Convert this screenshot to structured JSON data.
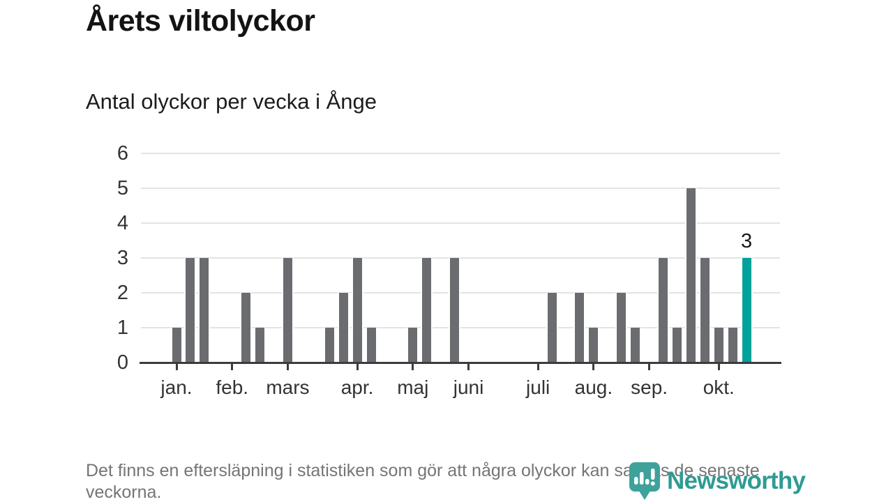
{
  "header": {
    "title": "Årets viltolyckor",
    "subtitle": "Antal olyckor per vecka i Ånge"
  },
  "chart_data": {
    "type": "bar",
    "title": "Årets viltolyckor",
    "subtitle": "Antal olyckor per vecka i Ånge",
    "xlabel": "",
    "ylabel": "",
    "x_unit": "vecka",
    "weeks_start": 1,
    "weeks_end": 42,
    "values": [
      1,
      3,
      3,
      0,
      0,
      2,
      1,
      0,
      3,
      0,
      0,
      1,
      2,
      3,
      1,
      0,
      0,
      1,
      3,
      0,
      3,
      0,
      0,
      0,
      0,
      0,
      0,
      2,
      0,
      2,
      1,
      0,
      2,
      1,
      0,
      3,
      1,
      5,
      3,
      1,
      1,
      3
    ],
    "highlight": {
      "week": 42,
      "value": 3,
      "label": "3"
    },
    "month_ticks": [
      {
        "label": "jan.",
        "week": 1
      },
      {
        "label": "feb.",
        "week": 5
      },
      {
        "label": "mars",
        "week": 9
      },
      {
        "label": "apr.",
        "week": 14
      },
      {
        "label": "maj",
        "week": 18
      },
      {
        "label": "juni",
        "week": 22
      },
      {
        "label": "juli",
        "week": 27
      },
      {
        "label": "aug.",
        "week": 31
      },
      {
        "label": "sep.",
        "week": 35
      },
      {
        "label": "okt.",
        "week": 40
      }
    ],
    "ylim": [
      0,
      6
    ],
    "yticks": [
      0,
      1,
      2,
      3,
      4,
      5,
      6
    ],
    "grid": true,
    "legend": "none",
    "bar_color": "#6b6c6f",
    "highlight_color": "#00a29a",
    "grid_color": "#e3e3e3",
    "axis_color": "#3c3c3c",
    "axis_label_color": "#333333",
    "value_label_color": "#1a1a1a"
  },
  "footer": {
    "note": "Det finns en eftersläpning i statistiken som gör att några olyckor kan saknas de senaste veckorna.",
    "brand": "Newsworthy",
    "brand_color": "#2e9b94"
  }
}
